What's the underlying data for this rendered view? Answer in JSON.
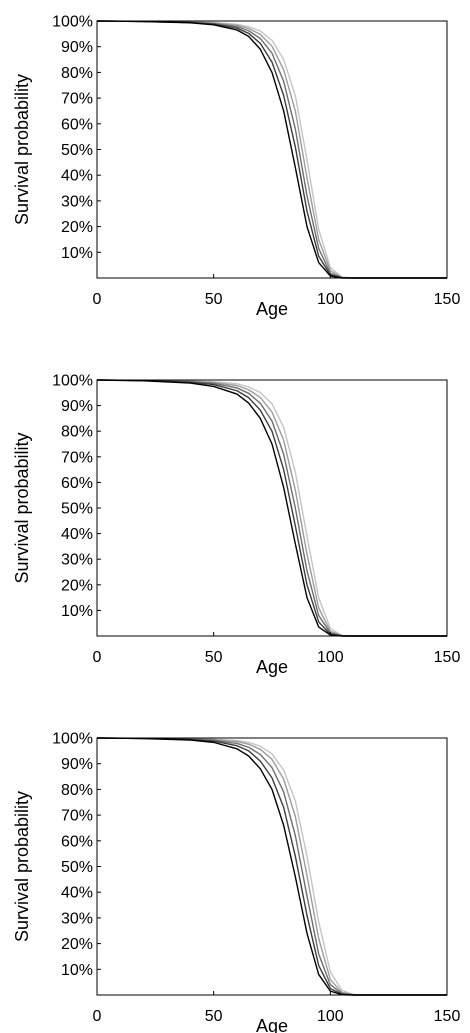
{
  "chart_data": [
    {
      "type": "line",
      "title": "",
      "xlabel": "Age",
      "ylabel": "Survival probability",
      "xlim": [
        0,
        150
      ],
      "ylim": [
        0,
        100
      ],
      "xticks": [
        0,
        50,
        100,
        150
      ],
      "yticks": [
        "10%",
        "20%",
        "30%",
        "40%",
        "50%",
        "60%",
        "70%",
        "80%",
        "90%",
        "100%"
      ],
      "grid": false,
      "x": [
        0,
        20,
        40,
        50,
        60,
        65,
        70,
        75,
        80,
        85,
        90,
        95,
        100,
        105,
        110,
        120,
        150
      ],
      "series": [
        {
          "color": "#000000",
          "values": [
            100,
            99.8,
            99.3,
            98.5,
            96.5,
            94,
            89,
            80,
            65,
            43,
            20,
            6,
            0.8,
            0,
            0,
            0,
            0
          ]
        },
        {
          "color": "#3c3c3c",
          "values": [
            100,
            99.8,
            99.4,
            98.8,
            97.2,
            95.2,
            91.3,
            84,
            71,
            51,
            26,
            8.5,
            1.2,
            0.1,
            0,
            0,
            0
          ]
        },
        {
          "color": "#6e6e6e",
          "values": [
            100,
            99.9,
            99.5,
            99.0,
            97.8,
            96.2,
            93.2,
            87.5,
            76.5,
            58,
            32,
            11.5,
            1.8,
            0.1,
            0,
            0,
            0
          ]
        },
        {
          "color": "#9c9c9c",
          "values": [
            100,
            99.9,
            99.6,
            99.2,
            98.3,
            97.1,
            94.8,
            90.2,
            81,
            65,
            39,
            15,
            2.8,
            0.2,
            0,
            0,
            0
          ]
        },
        {
          "color": "#c4c4c4",
          "values": [
            100,
            99.9,
            99.7,
            99.4,
            98.7,
            97.8,
            96.1,
            92.5,
            85,
            71,
            46,
            19,
            4,
            0.3,
            0,
            0,
            0
          ]
        }
      ]
    },
    {
      "type": "line",
      "title": "",
      "xlabel": "Age",
      "ylabel": "Survival probability",
      "xlim": [
        0,
        150
      ],
      "ylim": [
        0,
        100
      ],
      "xticks": [
        0,
        50,
        100,
        150
      ],
      "yticks": [
        "10%",
        "20%",
        "30%",
        "40%",
        "50%",
        "60%",
        "70%",
        "80%",
        "90%",
        "100%"
      ],
      "grid": false,
      "x": [
        0,
        20,
        40,
        50,
        60,
        65,
        70,
        75,
        80,
        85,
        90,
        95,
        100,
        105,
        110,
        120,
        150
      ],
      "series": [
        {
          "color": "#000000",
          "values": [
            100,
            99.7,
            98.8,
            97.5,
            94.5,
            91,
            85,
            75,
            58,
            36,
            15,
            3.5,
            0.4,
            0,
            0,
            0,
            0
          ]
        },
        {
          "color": "#3c3c3c",
          "values": [
            100,
            99.8,
            99.1,
            98.2,
            95.8,
            93.1,
            88.2,
            80,
            65,
            43,
            20,
            5.5,
            0.7,
            0,
            0,
            0,
            0
          ]
        },
        {
          "color": "#6e6e6e",
          "values": [
            100,
            99.8,
            99.3,
            98.7,
            96.9,
            94.8,
            90.9,
            84,
            71,
            50,
            25.5,
            8,
            1.2,
            0.1,
            0,
            0,
            0
          ]
        },
        {
          "color": "#9c9c9c",
          "values": [
            100,
            99.9,
            99.5,
            99.0,
            97.8,
            96.2,
            93.2,
            87.5,
            76.5,
            57,
            32,
            11,
            1.9,
            0.1,
            0,
            0,
            0
          ]
        },
        {
          "color": "#c4c4c4",
          "values": [
            100,
            99.9,
            99.6,
            99.3,
            98.5,
            97.3,
            95.1,
            90.7,
            81.5,
            64,
            39,
            15,
            3,
            0.2,
            0,
            0,
            0
          ]
        }
      ]
    },
    {
      "type": "line",
      "title": "",
      "xlabel": "Age",
      "ylabel": "Survival probability",
      "xlim": [
        0,
        150
      ],
      "ylim": [
        0,
        100
      ],
      "xticks": [
        0,
        50,
        100,
        150
      ],
      "yticks": [
        "10%",
        "20%",
        "30%",
        "40%",
        "50%",
        "60%",
        "70%",
        "80%",
        "90%",
        "100%"
      ],
      "grid": false,
      "x": [
        0,
        20,
        40,
        50,
        60,
        65,
        70,
        75,
        80,
        85,
        90,
        95,
        100,
        105,
        110,
        115,
        120,
        150
      ],
      "series": [
        {
          "color": "#000000",
          "values": [
            100,
            99.8,
            99.2,
            98.3,
            95.8,
            93,
            88,
            80,
            66,
            46,
            24,
            8,
            1.5,
            0.1,
            0,
            0,
            0,
            0
          ]
        },
        {
          "color": "#3c3c3c",
          "values": [
            100,
            99.8,
            99.4,
            98.8,
            97,
            95,
            91,
            84.5,
            73,
            54,
            31,
            11.5,
            2.5,
            0.3,
            0,
            0,
            0,
            0
          ]
        },
        {
          "color": "#6e6e6e",
          "values": [
            100,
            99.9,
            99.5,
            99.1,
            97.9,
            96.4,
            93.6,
            88.5,
            79,
            62,
            38.5,
            16,
            4,
            0.6,
            0,
            0,
            0,
            0
          ]
        },
        {
          "color": "#9c9c9c",
          "values": [
            100,
            99.9,
            99.6,
            99.4,
            98.6,
            97.6,
            95.6,
            91.7,
            84,
            69.5,
            46.5,
            22,
            6,
            1,
            0.1,
            0,
            0,
            0
          ]
        },
        {
          "color": "#c4c4c4",
          "values": [
            100,
            99.9,
            99.7,
            99.5,
            99.0,
            98.3,
            96.8,
            93.8,
            87.5,
            75.5,
            54,
            28.5,
            9,
            1.8,
            0.2,
            0,
            0,
            0
          ]
        }
      ]
    }
  ]
}
